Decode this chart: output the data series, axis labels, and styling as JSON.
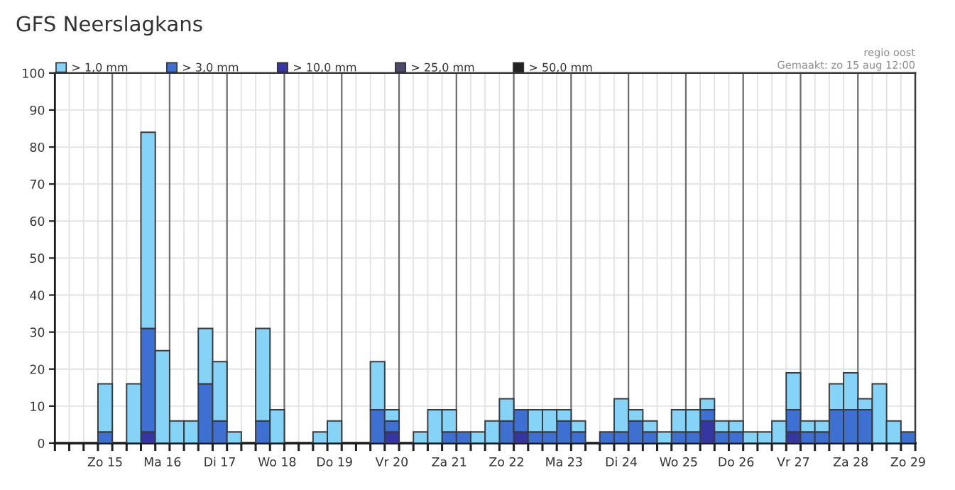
{
  "chart_data": {
    "type": "bar",
    "title": "GFS Neerslagkans",
    "annotations": [
      "regio oost",
      "Gemaakt: zo 15 aug 12:00"
    ],
    "categories": [
      null,
      null,
      null,
      "Zo 15",
      null,
      null,
      null,
      "Ma 16",
      null,
      null,
      null,
      "Di 17",
      null,
      null,
      null,
      "Wo 18",
      null,
      null,
      null,
      "Do 19",
      null,
      null,
      null,
      "Vr 20",
      null,
      null,
      null,
      "Za 21",
      null,
      null,
      null,
      "Zo 22",
      null,
      null,
      null,
      "Ma 23",
      null,
      null,
      null,
      "Di 24",
      null,
      null,
      null,
      "Wo 25",
      null,
      null,
      null,
      "Do 26",
      null,
      null,
      null,
      "Vr 27",
      null,
      null,
      null,
      "Za 28",
      null,
      null,
      null,
      "Zo 29"
    ],
    "stacked": true,
    "series": [
      {
        "name": "> 50,0 mm",
        "color": "#222222",
        "values": [
          0,
          0,
          0,
          0,
          0,
          0,
          0,
          0,
          0,
          0,
          0,
          0,
          0,
          0,
          0,
          0,
          0,
          0,
          0,
          0,
          0,
          0,
          0,
          0,
          0,
          0,
          0,
          0,
          0,
          0,
          0,
          0,
          0,
          0,
          0,
          0,
          0,
          0,
          0,
          0,
          0,
          0,
          0,
          0,
          0,
          0,
          0,
          0,
          0,
          0,
          0,
          0,
          0,
          0,
          0,
          0,
          0,
          0,
          0,
          0
        ]
      },
      {
        "name": "> 25,0 mm",
        "color": "#4b4969",
        "values": [
          0,
          0,
          0,
          0,
          0,
          0,
          0,
          0,
          0,
          0,
          0,
          0,
          0,
          0,
          0,
          0,
          0,
          0,
          0,
          0,
          0,
          0,
          0,
          0,
          0,
          0,
          0,
          0,
          0,
          0,
          0,
          0,
          0,
          0,
          0,
          0,
          0,
          0,
          0,
          0,
          0,
          0,
          0,
          0,
          0,
          0,
          0,
          0,
          0,
          0,
          0,
          0,
          0,
          0,
          0,
          0,
          0,
          0,
          0,
          0
        ]
      },
      {
        "name": "> 10,0 mm",
        "color": "#3636a2",
        "values": [
          0,
          0,
          0,
          0,
          0,
          0,
          3,
          0,
          0,
          0,
          0,
          0,
          0,
          0,
          0,
          0,
          0,
          0,
          0,
          0,
          0,
          0,
          0,
          3,
          0,
          0,
          0,
          0,
          0,
          0,
          0,
          0,
          3,
          0,
          0,
          0,
          0,
          0,
          0,
          0,
          0,
          0,
          0,
          0,
          0,
          6,
          0,
          0,
          0,
          0,
          0,
          3,
          0,
          0,
          0,
          0,
          0,
          0,
          0,
          0
        ]
      },
      {
        "name": "> 3,0 mm",
        "color": "#3d70d0",
        "values": [
          0,
          0,
          0,
          3,
          0,
          0,
          28,
          0,
          0,
          0,
          16,
          6,
          0,
          0,
          6,
          0,
          0,
          0,
          0,
          0,
          0,
          0,
          9,
          3,
          0,
          0,
          0,
          3,
          3,
          0,
          0,
          6,
          6,
          3,
          3,
          6,
          3,
          0,
          3,
          3,
          6,
          3,
          0,
          3,
          3,
          3,
          3,
          3,
          0,
          0,
          0,
          6,
          3,
          3,
          9,
          9,
          9,
          0,
          0,
          3
        ]
      },
      {
        "name": "> 1,0 mm",
        "color": "#86d3f8",
        "values": [
          0,
          0,
          0,
          13,
          0,
          16,
          53,
          25,
          6,
          6,
          15,
          16,
          3,
          0,
          25,
          9,
          0,
          0,
          3,
          6,
          0,
          0,
          13,
          3,
          0,
          3,
          9,
          6,
          0,
          3,
          6,
          6,
          0,
          6,
          6,
          3,
          3,
          0,
          0,
          9,
          3,
          3,
          3,
          6,
          6,
          3,
          3,
          3,
          3,
          3,
          6,
          10,
          3,
          3,
          7,
          10,
          3,
          16,
          6,
          0
        ]
      }
    ],
    "ylim": [
      0,
      100
    ],
    "yticks": [
      0,
      10,
      20,
      30,
      40,
      50,
      60,
      70,
      80,
      90,
      100
    ],
    "grid": true,
    "legend": "top"
  }
}
